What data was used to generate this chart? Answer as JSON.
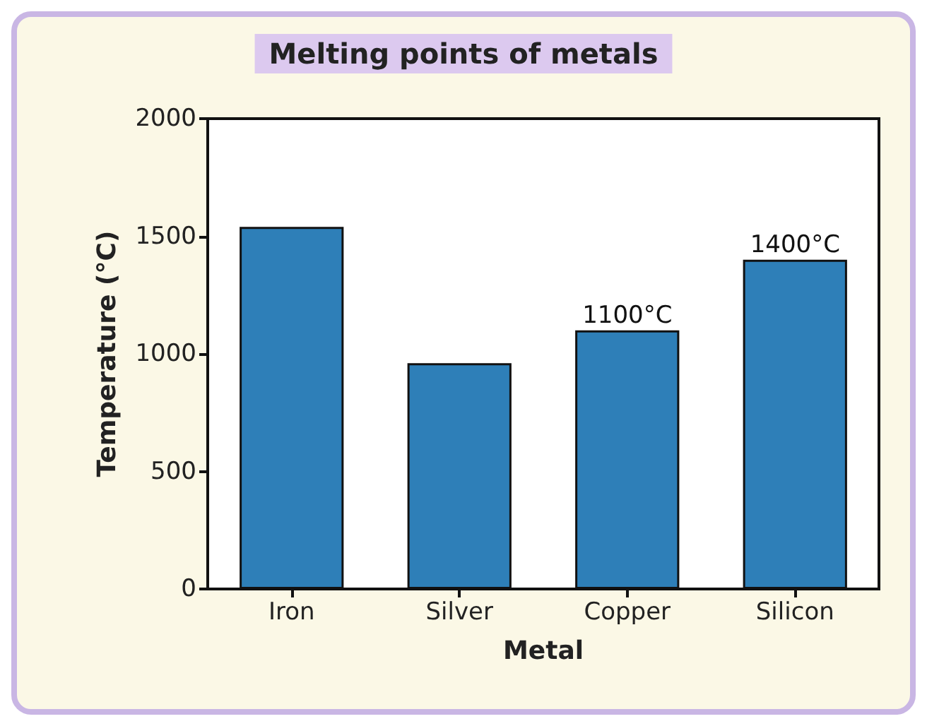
{
  "chart_data": {
    "type": "bar",
    "title": "Melting points of metals",
    "xlabel": "Metal",
    "ylabel": "Temperature (°C)",
    "categories": [
      "Iron",
      "Silver",
      "Copper",
      "Silicon"
    ],
    "values": [
      1540,
      960,
      1100,
      1400
    ],
    "value_labels": [
      null,
      null,
      "1100°C",
      "1400°C"
    ],
    "color": "#2e7fb8",
    "ylim": [
      0,
      2000
    ],
    "yticks": [
      0,
      500,
      1000,
      1500,
      2000
    ],
    "grid": false
  }
}
